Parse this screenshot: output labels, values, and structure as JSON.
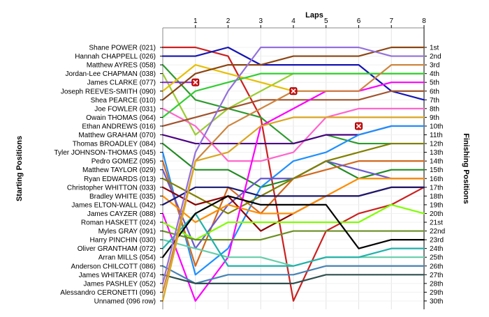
{
  "chart_data": {
    "type": "line",
    "title": "",
    "xlabel": "Laps",
    "ylabel_left": "Starting Positions",
    "ylabel_right": "Finishing Positions",
    "x_ticks": [
      "1",
      "2",
      "3",
      "4",
      "5",
      "6",
      "7",
      "8"
    ],
    "finish_labels": [
      "1st",
      "2nd",
      "3rd",
      "4th",
      "5th",
      "6th",
      "7th",
      "8th",
      "9th",
      "10th",
      "11th",
      "12th",
      "13th",
      "14th",
      "15th",
      "16th",
      "17th",
      "18th",
      "19th",
      "20th",
      "21st",
      "22nd",
      "23rd",
      "24th",
      "25th",
      "26th",
      "27th",
      "28th",
      "29th",
      "30th"
    ],
    "grid": true,
    "series": [
      {
        "name": "Shane POWER (021)",
        "color": "#cc2020",
        "positions": [
          1,
          1,
          2,
          9,
          30,
          22,
          20,
          19,
          17
        ]
      },
      {
        "name": "Hannah CHAPPELL (026)",
        "color": "#1414b4",
        "positions": [
          2,
          2,
          1,
          3,
          3,
          3,
          3,
          6,
          7
        ]
      },
      {
        "name": "Matthew AYRES (058)",
        "color": "#2e9b2e",
        "positions": [
          3,
          7,
          8,
          9,
          12,
          11,
          12,
          12,
          12
        ]
      },
      {
        "name": "Jordan-Lee CHAPMAN (038)",
        "color": "#9acd32",
        "positions": [
          4,
          11,
          8,
          6,
          4,
          4,
          4,
          4,
          4
        ]
      },
      {
        "name": "James CLARKE (077)",
        "color": "#8a2be2",
        "positions": [
          5,
          5
        ]
      },
      {
        "name": "Joseph REEVES-SMITH (090)",
        "color": "#e6c000",
        "positions": [
          6,
          3,
          4,
          5,
          6
        ]
      },
      {
        "name": "Shea PEARCE (010)",
        "color": "#8b4513",
        "positions": [
          7,
          4,
          3,
          3,
          2,
          2,
          2,
          1,
          1
        ]
      },
      {
        "name": "Joe FOWLER (031)",
        "color": "#ff66cc",
        "positions": [
          8,
          10,
          14,
          14,
          13,
          9,
          8,
          8,
          8
        ]
      },
      {
        "name": "Owain THOMAS (064)",
        "color": "#32cd32",
        "positions": [
          9,
          6,
          5,
          4,
          4,
          4,
          4,
          4,
          4
        ]
      },
      {
        "name": "Ethan ANDREWS (016)",
        "color": "#a0522d",
        "positions": [
          10,
          9,
          8,
          7,
          7,
          7,
          7,
          6,
          6
        ]
      },
      {
        "name": "Matthew GRAHAM (070)",
        "color": "#4b0082",
        "positions": [
          11,
          12,
          12,
          12,
          12,
          11,
          11,
          10,
          10
        ]
      },
      {
        "name": "Thomas BROADLEY (084)",
        "color": "#228b22",
        "positions": [
          12,
          15,
          15,
          17,
          16,
          14,
          16,
          15,
          15
        ]
      },
      {
        "name": "Tyler JOHNSON-THOMAS (045)",
        "color": "#1e90ff",
        "positions": [
          13,
          27,
          24,
          17,
          14,
          13,
          11,
          10,
          10
        ]
      },
      {
        "name": "Pedro GOMEZ (095)",
        "color": "#d2691e",
        "positions": [
          14,
          26,
          17,
          20,
          16,
          15,
          14,
          14,
          14
        ]
      },
      {
        "name": "Matthew TAYLOR (029)",
        "color": "#6a5acd",
        "positions": [
          15,
          24,
          19,
          16,
          16,
          14,
          15,
          16,
          16
        ]
      },
      {
        "name": "Ryan EDWARDS (013)",
        "color": "#808000",
        "positions": [
          16,
          18,
          20,
          18,
          16,
          14,
          13,
          12,
          12
        ]
      },
      {
        "name": "Christopher WHITTON (033)",
        "color": "#8b0000",
        "positions": [
          17,
          19,
          18,
          22,
          20,
          18,
          18,
          17,
          17
        ]
      },
      {
        "name": "Bradley WHITE (035)",
        "color": "#ff8c00",
        "positions": [
          18,
          21,
          19,
          20,
          20,
          18,
          16,
          16,
          16
        ]
      },
      {
        "name": "James ELTON-WALL (042)",
        "color": "#191970",
        "positions": [
          19,
          17,
          17,
          18,
          18,
          18,
          18,
          17,
          17
        ]
      },
      {
        "name": "James CAYZER (088)",
        "color": "#ff00ff",
        "positions": [
          20,
          30,
          25,
          10,
          8,
          6,
          6,
          5,
          5
        ]
      },
      {
        "name": "Roman HASKETT (024)",
        "color": "#7fff00",
        "positions": [
          21,
          23,
          21,
          21,
          21,
          21,
          21,
          19,
          20
        ]
      },
      {
        "name": "Myles GRAY (091)",
        "color": "#6b8e23",
        "positions": [
          22,
          23,
          23,
          23,
          22,
          22,
          22,
          22,
          22
        ]
      },
      {
        "name": "Harry PINCHIN (030)",
        "color": "#66cdaa",
        "positions": [
          23,
          24,
          25,
          25,
          26,
          25,
          25,
          25,
          25
        ]
      },
      {
        "name": "Oliver GRANTHAM (072)",
        "color": "#20b2aa",
        "positions": [
          24,
          20,
          26,
          26,
          26,
          25,
          25,
          24,
          24
        ]
      },
      {
        "name": "Arran MILLS (054)",
        "color": "#000000",
        "positions": [
          25,
          20,
          18,
          19,
          19,
          19,
          24,
          23,
          23
        ]
      },
      {
        "name": "Anderson CHILCOTT (086)",
        "color": "#4682b4",
        "positions": [
          26,
          28,
          27,
          27,
          27,
          26,
          26,
          26,
          26
        ]
      },
      {
        "name": "James WHITAKER (074)",
        "color": "#2f4f4f",
        "positions": [
          27,
          28,
          28,
          28,
          28,
          27,
          27,
          27,
          27
        ]
      },
      {
        "name": "James PASHLEY (052)",
        "color": "#9370db",
        "positions": [
          28,
          13,
          6,
          1,
          1,
          1,
          1,
          2,
          2
        ]
      },
      {
        "name": "Alessandro CERONETTI (096)",
        "color": "#cd853f",
        "positions": [
          29,
          14,
          10,
          8,
          6,
          6,
          6,
          3,
          3
        ]
      },
      {
        "name": "Unnamed (096 row)",
        "color": "#daa520",
        "positions": [
          30,
          14,
          13,
          10,
          9,
          9,
          9,
          9,
          9
        ]
      }
    ],
    "retirements": [
      {
        "lap": 1,
        "position": 5
      },
      {
        "lap": 4,
        "position": 6
      },
      {
        "lap": 6,
        "position": 10
      }
    ]
  }
}
